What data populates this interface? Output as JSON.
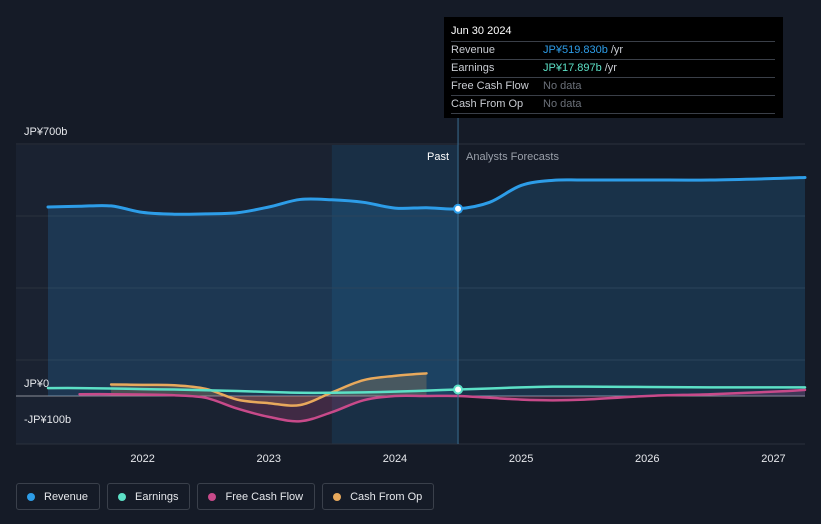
{
  "tooltip": {
    "date": "Jun 30 2024",
    "rows": [
      {
        "label": "Revenue",
        "value": "JP¥519.830b",
        "unit": "/yr",
        "color": "#2d9de8"
      },
      {
        "label": "Earnings",
        "value": "JP¥17.897b",
        "unit": "/yr",
        "color": "#5ce0c6"
      },
      {
        "label": "Free Cash Flow",
        "value": "No data",
        "unit": "",
        "color": "#6b7079"
      },
      {
        "label": "Cash From Op",
        "value": "No data",
        "unit": "",
        "color": "#6b7079"
      }
    ]
  },
  "legend": [
    {
      "label": "Revenue",
      "color": "#2d9de8"
    },
    {
      "label": "Earnings",
      "color": "#5ce0c6"
    },
    {
      "label": "Free Cash Flow",
      "color": "#c84a8a"
    },
    {
      "label": "Cash From Op",
      "color": "#e8a95c"
    }
  ],
  "chart_data": {
    "type": "line",
    "title": "",
    "xlabel": "",
    "ylabel": "",
    "y_axis_labels": [
      "JP¥700b",
      "JP¥0",
      "-JP¥100b"
    ],
    "y_axis_label_values": [
      700,
      0,
      -100
    ],
    "ylim": [
      -100,
      700
    ],
    "xlim": [
      2021.25,
      2027.25
    ],
    "x_ticks": [
      2022,
      2023,
      2024,
      2025,
      2026,
      2027
    ],
    "x_tick_labels": [
      "2022",
      "2023",
      "2024",
      "2025",
      "2026",
      "2027"
    ],
    "past_label": "Past",
    "forecast_label": "Analysts Forecasts",
    "past_end": 2024.5,
    "highlight_start": 2023.5,
    "series": [
      {
        "name": "Revenue",
        "color": "#2d9de8",
        "fill": true,
        "x": [
          2021.25,
          2021.5,
          2021.75,
          2022.0,
          2022.25,
          2022.5,
          2022.75,
          2023.0,
          2023.25,
          2023.5,
          2023.75,
          2024.0,
          2024.25,
          2024.5,
          2024.75,
          2025.0,
          2025.25,
          2025.5,
          2026.0,
          2026.5,
          2027.0,
          2027.25
        ],
        "values": [
          525,
          527,
          528,
          510,
          505,
          506,
          509,
          525,
          546,
          545,
          538,
          522,
          523,
          520,
          538,
          585,
          599,
          600,
          600,
          600,
          604,
          607
        ]
      },
      {
        "name": "Earnings",
        "color": "#5ce0c6",
        "fill": false,
        "x": [
          2021.25,
          2021.5,
          2021.75,
          2022.0,
          2022.25,
          2022.5,
          2022.75,
          2023.0,
          2023.25,
          2023.5,
          2023.75,
          2024.0,
          2024.25,
          2024.5,
          2024.75,
          2025.0,
          2025.25,
          2025.5,
          2026.0,
          2026.5,
          2027.0,
          2027.25
        ],
        "values": [
          22,
          22,
          21,
          19,
          18,
          16,
          14,
          11,
          9,
          9,
          10,
          12,
          15,
          18,
          21,
          24,
          26,
          26,
          25,
          24,
          24,
          24
        ]
      },
      {
        "name": "Free Cash Flow",
        "color": "#c84a8a",
        "fill": true,
        "x": [
          2021.5,
          2021.75,
          2022.0,
          2022.25,
          2022.5,
          2022.75,
          2023.0,
          2023.25,
          2023.5,
          2023.75,
          2024.0,
          2024.25,
          2024.5,
          2024.75,
          2025.0,
          2025.25,
          2025.5,
          2026.0,
          2026.5,
          2027.0,
          2027.25
        ],
        "values": [
          5,
          5,
          4,
          2,
          -5,
          -35,
          -58,
          -70,
          -45,
          -12,
          0,
          0,
          0,
          -5,
          -10,
          -12,
          -10,
          0,
          5,
          12,
          17
        ]
      },
      {
        "name": "Cash From Op",
        "color": "#e8a95c",
        "fill": true,
        "x": [
          2021.75,
          2022.0,
          2022.25,
          2022.5,
          2022.75,
          2023.0,
          2023.25,
          2023.5,
          2023.75,
          2024.0,
          2024.25
        ],
        "values": [
          32,
          31,
          30,
          20,
          -10,
          -20,
          -25,
          10,
          44,
          56,
          63
        ]
      }
    ],
    "markers": [
      {
        "series": "Revenue",
        "x": 2024.5,
        "value": 520
      },
      {
        "series": "Earnings",
        "x": 2024.5,
        "value": 18
      }
    ]
  }
}
